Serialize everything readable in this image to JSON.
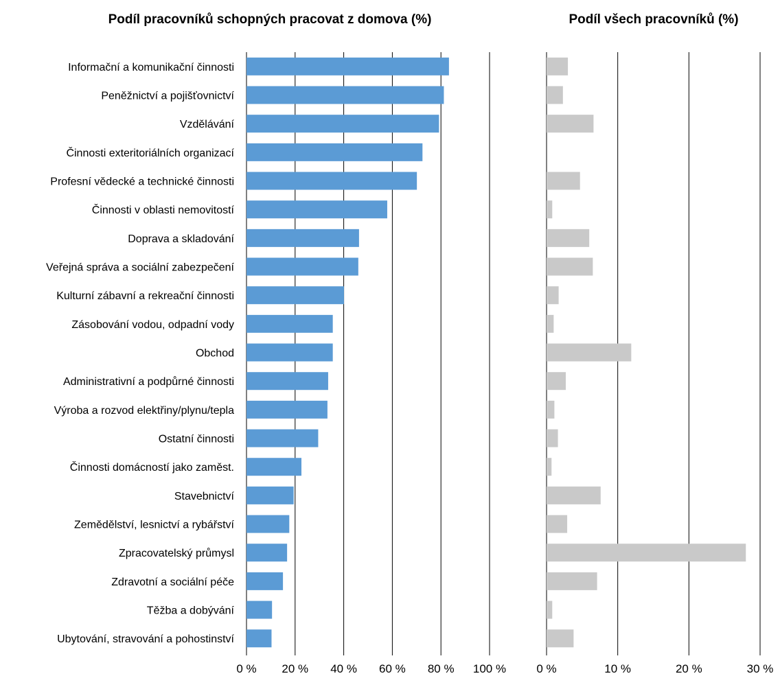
{
  "chart_data": [
    {
      "type": "bar",
      "orientation": "horizontal",
      "title": "Podíl pracovníků schopných pracovat z domova (%)",
      "categories": [
        "Informační a komunikační činnosti",
        "Peněžnictví a pojišťovnictví",
        "Vzdělávání",
        "Činnosti exteritoriálních organizací",
        "Profesní vědecké a technické činnosti",
        "Činnosti v oblasti nemovitostí",
        "Doprava a skladování",
        "Veřejná správa a sociální zabezpečení",
        "Kulturní zábavní a rekreační činnosti",
        "Zásobování vodou, odpadní vody",
        "Obchod",
        "Administrativní a podpůrné činnosti",
        "Výroba a rozvod elektřiny/plynu/tepla",
        "Ostatní činnosti",
        "Činnosti domácností jako zaměst.",
        "Stavebnictví",
        "Zemědělství, lesnictví a rybářství",
        "Zpracovatelský průmysl",
        "Zdravotní a sociální péče",
        "Těžba a dobývání",
        "Ubytování, stravování a pohostinství"
      ],
      "values": [
        83.3,
        81.2,
        79.2,
        72.4,
        70.1,
        57.9,
        46.3,
        46.0,
        40.1,
        35.5,
        35.5,
        33.6,
        33.3,
        29.5,
        22.6,
        19.4,
        17.6,
        16.7,
        15.0,
        10.5,
        10.3
      ],
      "xlim": [
        0,
        100
      ],
      "ticks": [
        "0 %",
        "20 %",
        "40 %",
        "60 %",
        "80 %",
        "100 %"
      ],
      "color": "#5b9bd5",
      "grid": true
    },
    {
      "type": "bar",
      "orientation": "horizontal",
      "title": "Podíl všech pracovníků (%)",
      "categories": [
        "Informační a komunikační činnosti",
        "Peněžnictví a pojišťovnictví",
        "Vzdělávání",
        "Činnosti exteritoriálních organizací",
        "Profesní vědecké a technické činnosti",
        "Činnosti v oblasti nemovitostí",
        "Doprava a skladování",
        "Veřejná správa a sociální zabezpečení",
        "Kulturní zábavní a rekreační činnosti",
        "Zásobování vodou, odpadní vody",
        "Obchod",
        "Administrativní a podpůrné činnosti",
        "Výroba a rozvod elektřiny/plynu/tepla",
        "Ostatní činnosti",
        "Činnosti domácností jako zaměst.",
        "Stavebnictví",
        "Zemědělství, lesnictví a rybářství",
        "Zpracovatelský průmysl",
        "Zdravotní a sociální péče",
        "Těžba a dobývání",
        "Ubytování, stravování a pohostinství"
      ],
      "values": [
        3.0,
        2.3,
        6.6,
        0.0,
        4.7,
        0.8,
        6.0,
        6.5,
        1.7,
        1.0,
        11.9,
        2.7,
        1.1,
        1.6,
        0.7,
        7.6,
        2.9,
        28.0,
        7.1,
        0.8,
        3.8
      ],
      "xlim": [
        0,
        30
      ],
      "ticks": [
        "0 %",
        "10 %",
        "20 %",
        "30 %"
      ],
      "color": "#c9c9c9",
      "grid": true
    }
  ]
}
